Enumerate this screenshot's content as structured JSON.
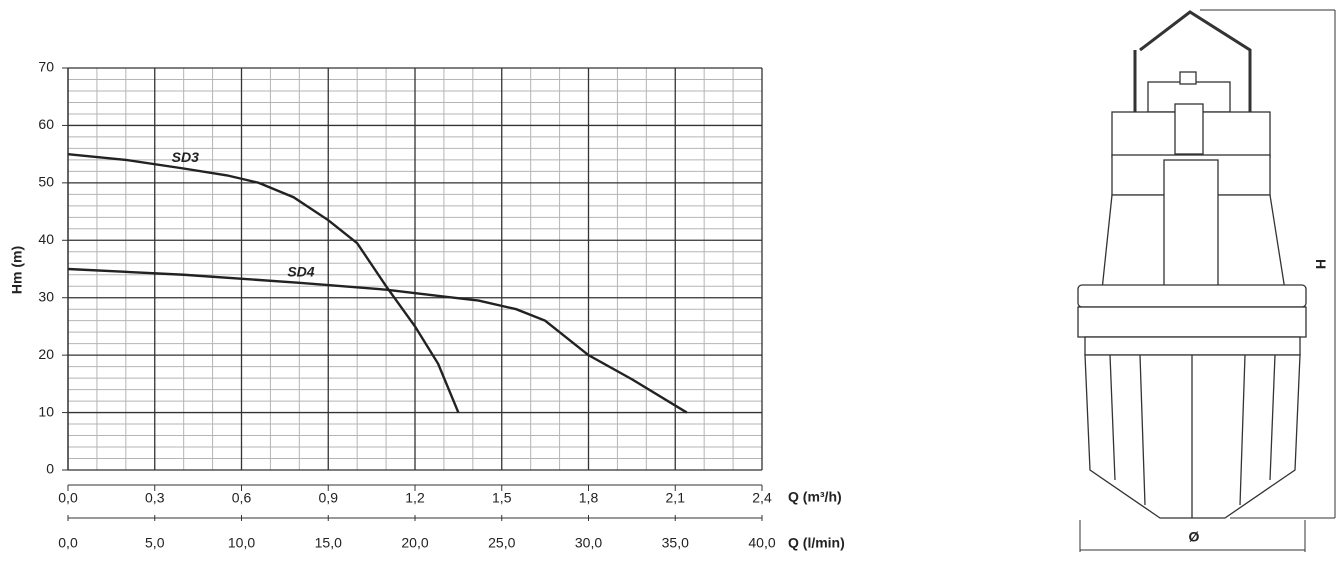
{
  "chart_data": {
    "type": "line",
    "y_label": "Hm (m)",
    "x_label": "Q (m³/h)",
    "x2_label": "Q (l/min)",
    "xlim": [
      0,
      2.4
    ],
    "xticks": [
      {
        "value": 0,
        "label": "0,0"
      },
      {
        "value": 0.3,
        "label": "0,3"
      },
      {
        "value": 0.6,
        "label": "0,6"
      },
      {
        "value": 0.9,
        "label": "0,9"
      },
      {
        "value": 1.2,
        "label": "1,2"
      },
      {
        "value": 1.5,
        "label": "1,5"
      },
      {
        "value": 1.8,
        "label": "1,8"
      },
      {
        "value": 2.1,
        "label": "2,1"
      },
      {
        "value": 2.4,
        "label": "2,4"
      }
    ],
    "x2lim": [
      0,
      40
    ],
    "x2ticks": [
      {
        "value": 0,
        "label": "0,0"
      },
      {
        "value": 5,
        "label": "5,0"
      },
      {
        "value": 10,
        "label": "10,0"
      },
      {
        "value": 15,
        "label": "15,0"
      },
      {
        "value": 20,
        "label": "20,0"
      },
      {
        "value": 25,
        "label": "25,0"
      },
      {
        "value": 30,
        "label": "30,0"
      },
      {
        "value": 35,
        "label": "35,0"
      },
      {
        "value": 40,
        "label": "40,0"
      }
    ],
    "ylim": [
      0,
      70
    ],
    "yticks": [
      0,
      10,
      20,
      30,
      40,
      50,
      60,
      70
    ],
    "grid": true,
    "series": [
      {
        "name": "SD3",
        "color": "#222222",
        "x": [
          0,
          0.2,
          0.4,
          0.55,
          0.66,
          0.78,
          0.9,
          1.0,
          1.1,
          1.2,
          1.28,
          1.35
        ],
        "values": [
          55,
          54,
          52.5,
          51.3,
          50,
          47.5,
          43.5,
          39.5,
          32,
          25,
          18.5,
          10
        ]
      },
      {
        "name": "SD4",
        "color": "#222222",
        "x": [
          0,
          0.4,
          0.8,
          1.1,
          1.3,
          1.42,
          1.55,
          1.65,
          1.8,
          1.95,
          2.14
        ],
        "values": [
          35,
          34,
          32.6,
          31.4,
          30.2,
          29.5,
          28,
          26,
          20,
          15.8,
          10
        ]
      }
    ]
  },
  "illustration": {
    "height_label": "H",
    "diameter_label": "Ø"
  }
}
